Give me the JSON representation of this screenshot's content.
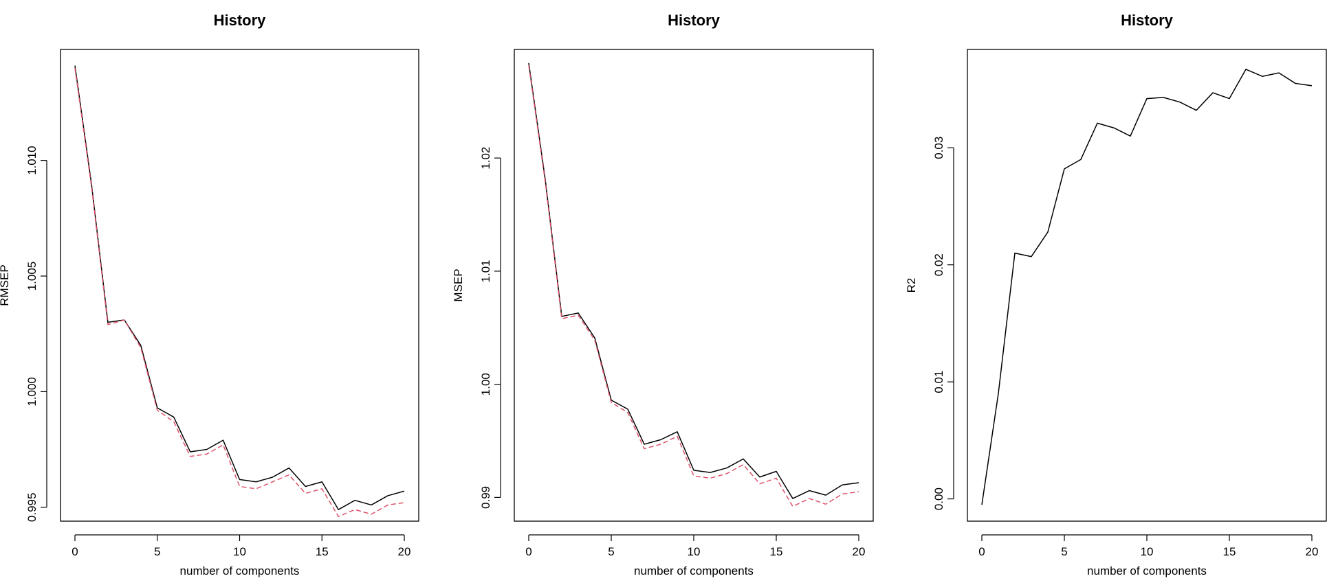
{
  "chart_data": [
    {
      "type": "line",
      "title": "History",
      "xlabel": "number of components",
      "ylabel": "RMSEP",
      "xlim": [
        0,
        20
      ],
      "ylim": [
        0.9944,
        1.0148
      ],
      "xticks": [
        0,
        5,
        10,
        15,
        20
      ],
      "xtick_labels": [
        "0",
        "5",
        "10",
        "15",
        "20"
      ],
      "yticks": [
        0.995,
        1.0,
        1.005,
        1.01
      ],
      "ytick_labels": [
        "0.995",
        "1.000",
        "1.005",
        "1.010"
      ],
      "grid": false,
      "x": [
        0,
        1,
        2,
        3,
        4,
        5,
        6,
        7,
        8,
        9,
        10,
        11,
        12,
        13,
        14,
        15,
        16,
        17,
        18,
        19,
        20
      ],
      "series": [
        {
          "color": "#000000",
          "dash": "solid",
          "values": [
            1.0141,
            1.009,
            1.003,
            1.0031,
            1.002,
            0.9993,
            0.9989,
            0.9974,
            0.9975,
            0.9979,
            0.9962,
            0.9961,
            0.9963,
            0.9967,
            0.9959,
            0.9961,
            0.9949,
            0.9953,
            0.9951,
            0.9955,
            0.9957
          ]
        },
        {
          "color": "#df536b",
          "dash": "dashed",
          "values": [
            1.014,
            1.0089,
            1.0029,
            1.0031,
            1.0019,
            0.9992,
            0.9987,
            0.9972,
            0.9973,
            0.9977,
            0.9959,
            0.9958,
            0.9961,
            0.9964,
            0.9956,
            0.9958,
            0.9946,
            0.9949,
            0.9947,
            0.9951,
            0.9952
          ]
        }
      ]
    },
    {
      "type": "line",
      "title": "History",
      "xlabel": "number of components",
      "ylabel": "MSEP",
      "xlim": [
        0,
        20
      ],
      "ylim": [
        0.9879,
        1.0296
      ],
      "xticks": [
        0,
        5,
        10,
        15,
        20
      ],
      "xtick_labels": [
        "0",
        "5",
        "10",
        "15",
        "20"
      ],
      "yticks": [
        0.99,
        1.0,
        1.01,
        1.02
      ],
      "ytick_labels": [
        "0.99",
        "1.00",
        "1.01",
        "1.02"
      ],
      "grid": false,
      "x": [
        0,
        1,
        2,
        3,
        4,
        5,
        6,
        7,
        8,
        9,
        10,
        11,
        12,
        13,
        14,
        15,
        16,
        17,
        18,
        19,
        20
      ],
      "series": [
        {
          "color": "#000000",
          "dash": "solid",
          "values": [
            1.0284,
            1.0181,
            1.006,
            1.0063,
            1.0041,
            0.9986,
            0.9978,
            0.9947,
            0.9951,
            0.9958,
            0.9924,
            0.9922,
            0.9926,
            0.9934,
            0.9918,
            0.9923,
            0.9899,
            0.9906,
            0.9902,
            0.9911,
            0.9913
          ]
        },
        {
          "color": "#df536b",
          "dash": "dashed",
          "values": [
            1.0282,
            1.0179,
            1.0058,
            1.0061,
            1.0039,
            0.9984,
            0.9975,
            0.9943,
            0.9947,
            0.9954,
            0.9919,
            0.9917,
            0.9921,
            0.9929,
            0.9912,
            0.9917,
            0.9892,
            0.9899,
            0.9894,
            0.9903,
            0.9905
          ]
        }
      ]
    },
    {
      "type": "line",
      "title": "History",
      "xlabel": "number of components",
      "ylabel": "R2",
      "xlim": [
        0,
        20
      ],
      "ylim": [
        -0.0019,
        0.0384
      ],
      "xticks": [
        0,
        5,
        10,
        15,
        20
      ],
      "xtick_labels": [
        "0",
        "5",
        "10",
        "15",
        "20"
      ],
      "yticks": [
        0.0,
        0.01,
        0.02,
        0.03
      ],
      "ytick_labels": [
        "0.00",
        "0.01",
        "0.02",
        "0.03"
      ],
      "grid": false,
      "x": [
        0,
        1,
        2,
        3,
        4,
        5,
        6,
        7,
        8,
        9,
        10,
        11,
        12,
        13,
        14,
        15,
        16,
        17,
        18,
        19,
        20
      ],
      "series": [
        {
          "color": "#000000",
          "dash": "solid",
          "values": [
            -0.0005,
            0.009,
            0.021,
            0.0207,
            0.0228,
            0.0282,
            0.029,
            0.0321,
            0.0317,
            0.031,
            0.0342,
            0.0343,
            0.0339,
            0.0332,
            0.0347,
            0.0342,
            0.0367,
            0.0361,
            0.0364,
            0.0355,
            0.0353
          ]
        }
      ]
    }
  ]
}
